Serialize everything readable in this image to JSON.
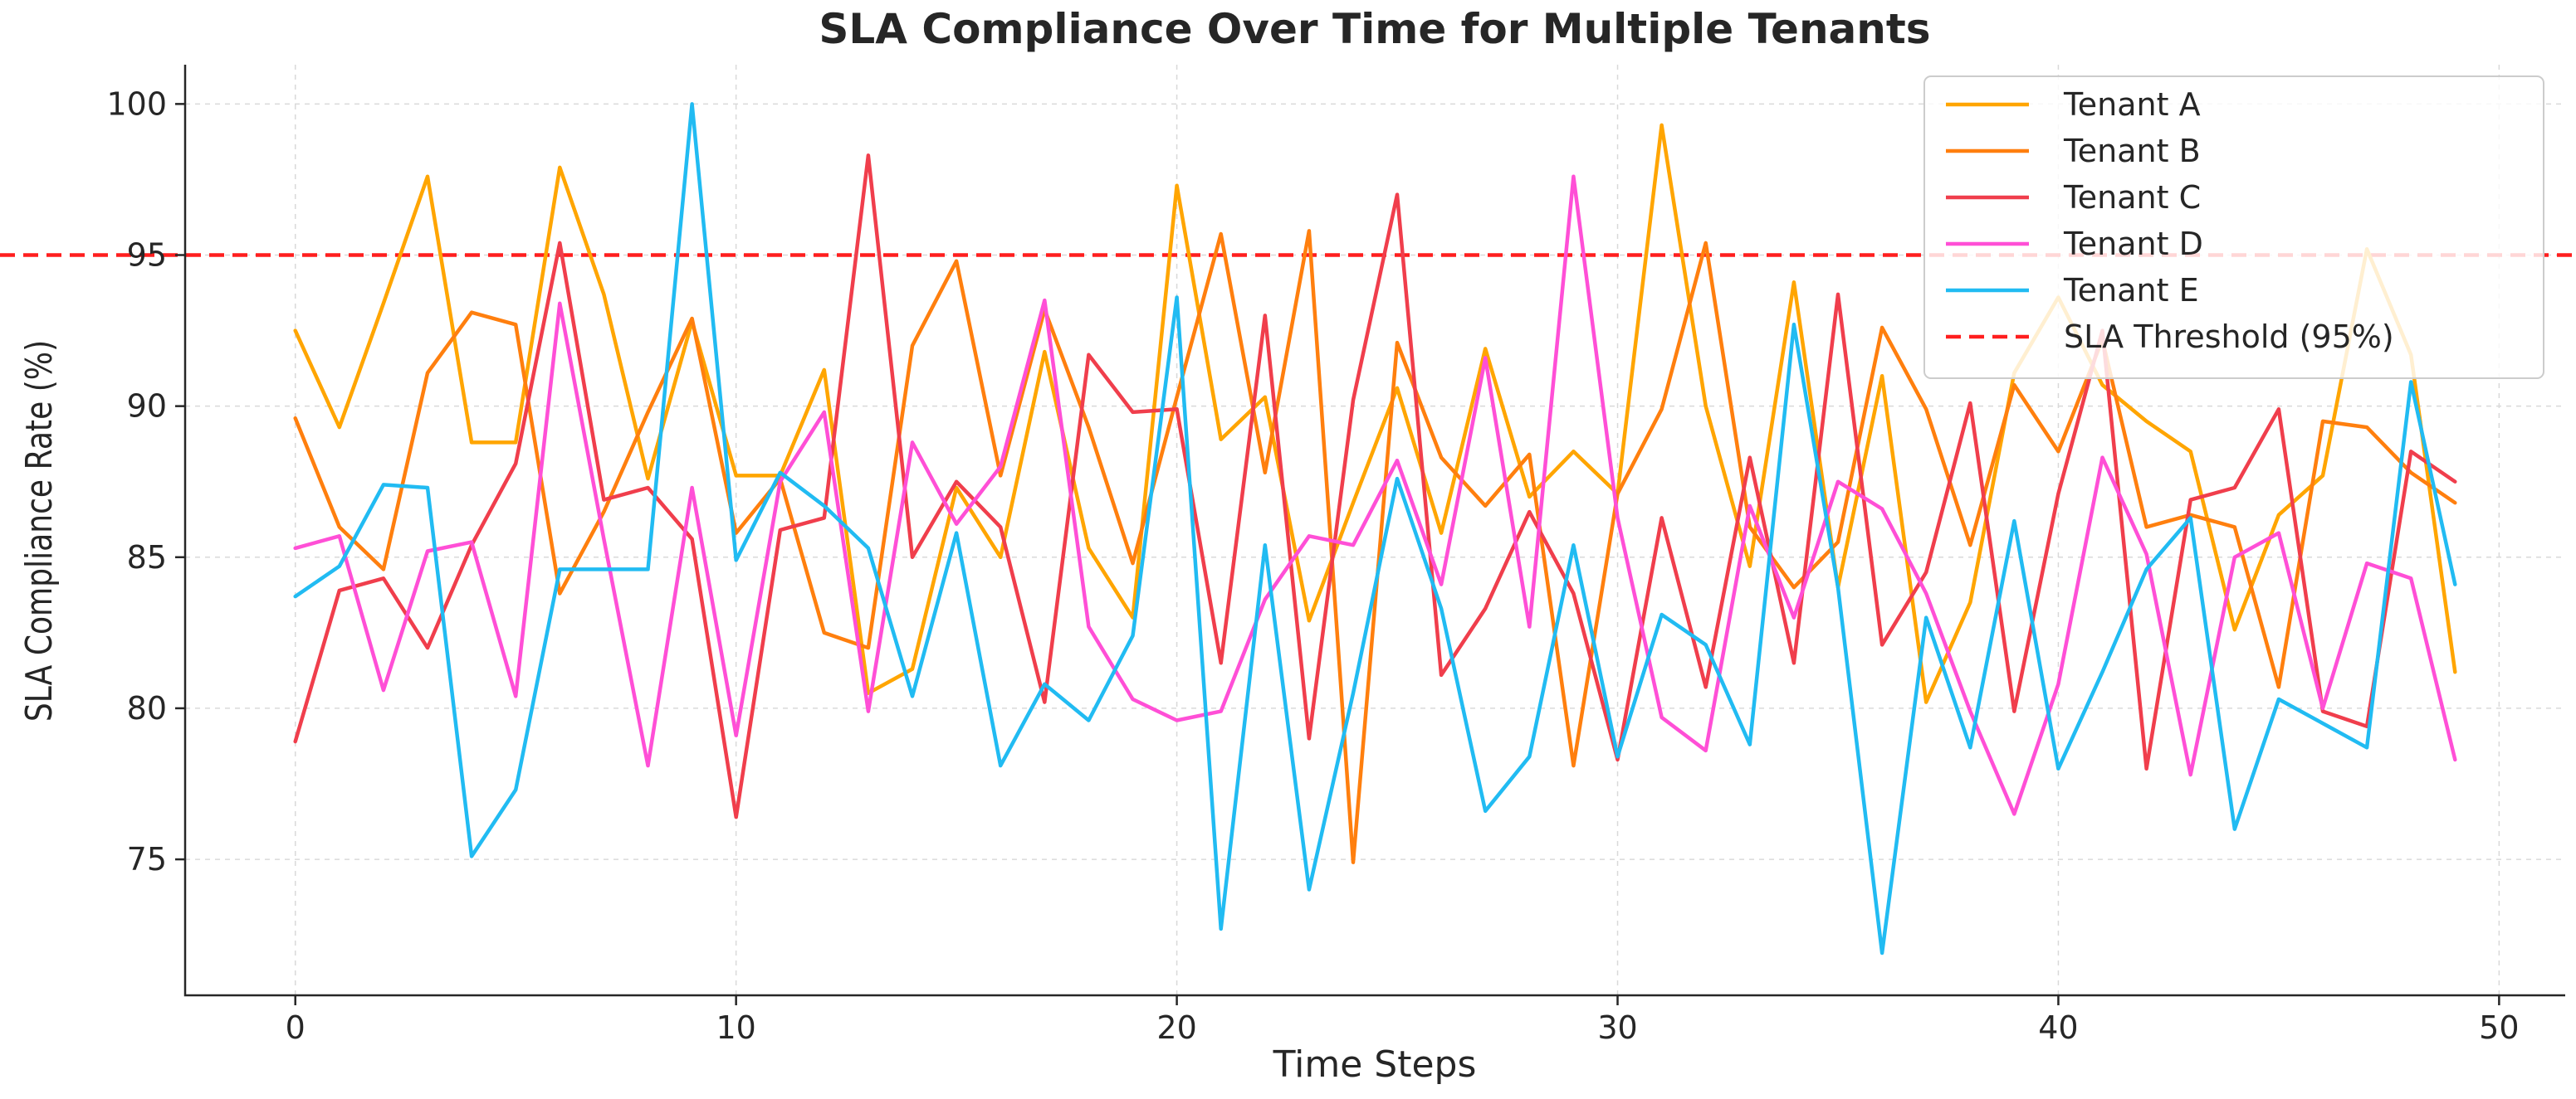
{
  "chart_data": {
    "type": "line",
    "title": "SLA Compliance Over Time for Multiple Tenants",
    "xlabel": "Time Steps",
    "ylabel": "SLA Compliance Rate (%)",
    "xlim": [
      -2.5,
      51.5
    ],
    "ylim": [
      70.5,
      101.3
    ],
    "xticks": [
      0,
      10,
      20,
      30,
      40,
      50
    ],
    "yticks": [
      75,
      80,
      85,
      90,
      95,
      100
    ],
    "grid": true,
    "legend_position": "top-right",
    "x": [
      0,
      1,
      2,
      3,
      4,
      5,
      6,
      7,
      8,
      9,
      10,
      11,
      12,
      13,
      14,
      15,
      16,
      17,
      18,
      19,
      20,
      21,
      22,
      23,
      24,
      25,
      26,
      27,
      28,
      29,
      30,
      31,
      32,
      33,
      34,
      35,
      36,
      37,
      38,
      39,
      40,
      41,
      42,
      43,
      44,
      45,
      46,
      47,
      48,
      49
    ],
    "series": [
      {
        "name": "Tenant A",
        "color": "#ffa500",
        "values": [
          92.5,
          89.3,
          93.4,
          97.6,
          88.8,
          88.8,
          97.9,
          93.7,
          87.6,
          92.8,
          87.7,
          87.7,
          91.2,
          80.5,
          81.3,
          87.3,
          85.0,
          91.8,
          85.3,
          83.0,
          97.3,
          88.9,
          90.3,
          82.9,
          86.8,
          90.6,
          85.8,
          91.9,
          87.0,
          88.5,
          87.1,
          99.3,
          90.0,
          84.7,
          94.1,
          84.0,
          91.0,
          80.2,
          83.5,
          91.1,
          93.6,
          90.7,
          89.5,
          88.5,
          82.6,
          86.4,
          87.7,
          95.2,
          91.7,
          81.2
        ]
      },
      {
        "name": "Tenant B",
        "color": "#ff7f0e",
        "values": [
          89.6,
          86.0,
          84.6,
          91.1,
          93.1,
          92.7,
          83.8,
          86.5,
          89.8,
          92.9,
          85.8,
          87.6,
          82.5,
          82.0,
          92.0,
          94.8,
          87.7,
          93.2,
          89.3,
          84.8,
          90.3,
          95.7,
          87.8,
          95.8,
          74.9,
          92.1,
          88.3,
          86.7,
          88.4,
          78.1,
          87.1,
          89.9,
          95.4,
          86.0,
          84.0,
          85.5,
          92.6,
          89.9,
          85.4,
          90.7,
          88.5,
          92.2,
          86.0,
          86.4,
          86.0,
          80.7,
          89.5,
          89.3,
          87.8,
          86.8
        ]
      },
      {
        "name": "Tenant C",
        "color": "#f03e4c",
        "values": [
          78.9,
          83.9,
          84.3,
          82.0,
          85.4,
          88.1,
          95.4,
          86.9,
          87.3,
          85.6,
          76.4,
          85.9,
          86.3,
          98.3,
          85.0,
          87.5,
          86.0,
          80.2,
          91.7,
          89.8,
          89.9,
          81.5,
          93.0,
          79.0,
          90.2,
          97.0,
          81.1,
          83.3,
          86.5,
          83.8,
          78.3,
          86.3,
          80.7,
          88.3,
          81.5,
          93.7,
          82.1,
          84.5,
          90.1,
          79.9,
          87.1,
          92.5,
          78.0,
          86.9,
          87.3,
          89.9,
          79.9,
          79.4,
          88.5,
          87.5
        ]
      },
      {
        "name": "Tenant D",
        "color": "#ff4fd6",
        "values": [
          85.3,
          85.7,
          80.6,
          85.2,
          85.5,
          80.4,
          93.4,
          85.6,
          78.1,
          87.3,
          79.1,
          87.5,
          89.8,
          79.9,
          88.8,
          86.1,
          88.0,
          93.5,
          82.7,
          80.3,
          79.6,
          79.9,
          83.6,
          85.7,
          85.4,
          88.2,
          84.1,
          91.6,
          82.7,
          97.6,
          86.3,
          79.7,
          78.6,
          86.7,
          83.0,
          87.5,
          86.6,
          83.8,
          79.9,
          76.5,
          80.8,
          88.3,
          85.1,
          77.8,
          85.0,
          85.8,
          80.0,
          84.8,
          84.3,
          78.3
        ]
      },
      {
        "name": "Tenant E",
        "color": "#21bbf2",
        "values": [
          83.7,
          84.7,
          87.4,
          87.3,
          75.1,
          77.3,
          84.6,
          84.6,
          84.6,
          100.0,
          84.9,
          87.8,
          86.7,
          85.3,
          80.4,
          85.8,
          78.1,
          80.8,
          79.6,
          82.4,
          93.6,
          72.7,
          85.4,
          74.0,
          80.5,
          87.6,
          83.3,
          76.6,
          78.4,
          85.4,
          78.4,
          83.1,
          82.1,
          78.8,
          92.7,
          84.0,
          71.9,
          83.0,
          78.7,
          86.2,
          78.0,
          81.2,
          84.6,
          86.3,
          76.0,
          80.3,
          79.5,
          78.7,
          90.8,
          84.1
        ]
      }
    ],
    "threshold": {
      "name": "SLA Threshold (95%)",
      "value": 95,
      "color": "#ff1e1e"
    }
  }
}
